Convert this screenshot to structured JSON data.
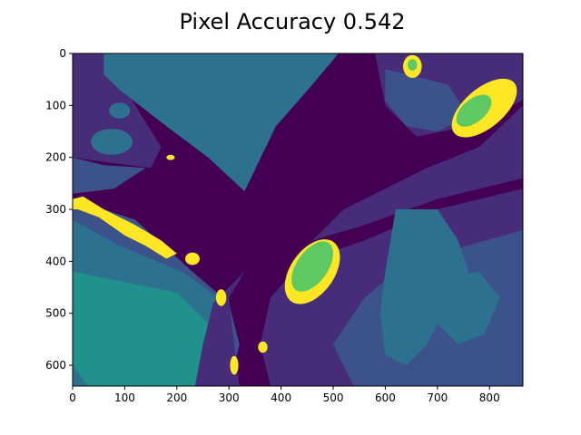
{
  "chart_data": {
    "type": "heatmap",
    "title": "Pixel Accuracy 0.542",
    "xlabel": "",
    "ylabel": "",
    "xlim": [
      0,
      864
    ],
    "ylim": [
      640,
      0
    ],
    "x_ticks": [
      0,
      100,
      200,
      300,
      400,
      500,
      600,
      700,
      800
    ],
    "y_ticks": [
      0,
      100,
      200,
      300,
      400,
      500,
      600
    ],
    "grid": false,
    "legend": "none",
    "colormap": "viridis",
    "class_colors": {
      "c0": "#440154",
      "c1": "#472c7a",
      "c2": "#3b528b",
      "c3": "#2c728e",
      "c4": "#21918c",
      "c5": "#5ec962",
      "c6": "#fde725"
    }
  }
}
